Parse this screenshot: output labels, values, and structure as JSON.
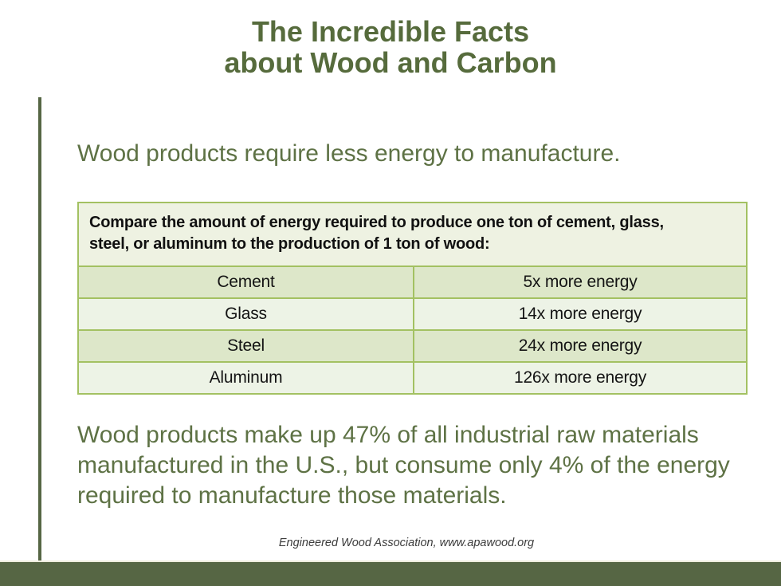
{
  "slide": {
    "title": {
      "line1": "The Incredible Facts",
      "line2": "about Wood and Carbon"
    },
    "subtitle": "Wood products require less energy to manufacture.",
    "table": {
      "header": "Compare the amount of energy required to produce one ton of cement, glass, steel, or aluminum to the production of 1 ton of wood:",
      "header_line1": "Compare the amount of energy required to produce one ton of cement, glass,",
      "header_line2": "steel, or aluminum to the production of 1 ton of wood:",
      "rows": [
        {
          "material": "Cement",
          "energy": "5x more energy"
        },
        {
          "material": "Glass",
          "energy": "14x more energy"
        },
        {
          "material": "Steel",
          "energy": "24x more energy"
        },
        {
          "material": "Aluminum",
          "energy": "126x more energy"
        }
      ]
    },
    "body_paragraph": "Wood products make up 47% of all industrial raw materials manufactured in the U.S., but consume only 4% of the energy required to manufacture those materials.",
    "footer": "Engineered Wood Association, www.apawood.org",
    "colors": {
      "title_green": "#566b3c",
      "body_green": "#5e7245",
      "accent_bar_green": "#566644",
      "table_border_green": "#a3c162",
      "table_header_bg": "#eef2e2",
      "table_row_dark": "#dde7c9",
      "table_row_light": "#edf3e6",
      "footer_text": "#3b3b3b"
    }
  }
}
